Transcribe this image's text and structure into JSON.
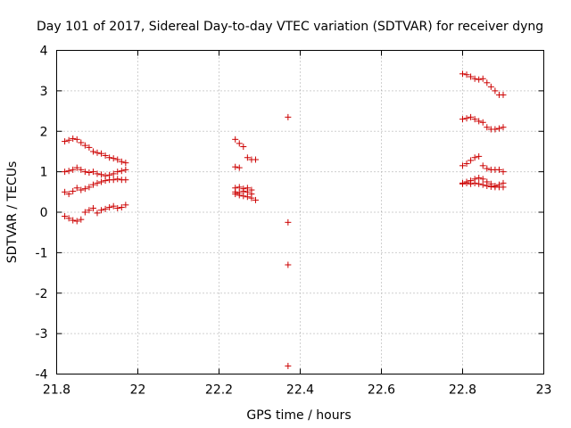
{
  "chart_data": {
    "type": "scatter",
    "title": "Day 101 of 2017, Sidereal Day-to-day VTEC variation (SDTVAR) for receiver dyng",
    "xlabel": "GPS time / hours",
    "ylabel": "SDTVAR / TECUs",
    "xlim": [
      21.8,
      23
    ],
    "ylim": [
      -4,
      4
    ],
    "xticks": [
      "21.8",
      "22",
      "22.2",
      "22.4",
      "22.6",
      "22.8",
      "23"
    ],
    "yticks": [
      "-4",
      "-3",
      "-2",
      "-1",
      "0",
      "1",
      "2",
      "3",
      "4"
    ],
    "grid": true,
    "marker": "+",
    "color": "#cc0000",
    "points": [
      [
        21.82,
        1.75
      ],
      [
        21.83,
        1.78
      ],
      [
        21.84,
        1.82
      ],
      [
        21.85,
        1.8
      ],
      [
        21.86,
        1.72
      ],
      [
        21.87,
        1.65
      ],
      [
        21.88,
        1.6
      ],
      [
        21.89,
        1.5
      ],
      [
        21.9,
        1.47
      ],
      [
        21.91,
        1.45
      ],
      [
        21.92,
        1.4
      ],
      [
        21.93,
        1.35
      ],
      [
        21.94,
        1.33
      ],
      [
        21.95,
        1.3
      ],
      [
        21.96,
        1.25
      ],
      [
        21.97,
        1.22
      ],
      [
        21.82,
        1.0
      ],
      [
        21.83,
        1.02
      ],
      [
        21.84,
        1.05
      ],
      [
        21.85,
        1.1
      ],
      [
        21.86,
        1.05
      ],
      [
        21.87,
        1.0
      ],
      [
        21.88,
        0.98
      ],
      [
        21.89,
        1.0
      ],
      [
        21.9,
        0.95
      ],
      [
        21.91,
        0.93
      ],
      [
        21.92,
        0.9
      ],
      [
        21.93,
        0.92
      ],
      [
        21.94,
        0.95
      ],
      [
        21.95,
        1.0
      ],
      [
        21.96,
        1.02
      ],
      [
        21.97,
        1.05
      ],
      [
        21.82,
        0.5
      ],
      [
        21.83,
        0.45
      ],
      [
        21.84,
        0.52
      ],
      [
        21.85,
        0.6
      ],
      [
        21.86,
        0.55
      ],
      [
        21.87,
        0.58
      ],
      [
        21.88,
        0.62
      ],
      [
        21.89,
        0.68
      ],
      [
        21.9,
        0.72
      ],
      [
        21.91,
        0.75
      ],
      [
        21.92,
        0.78
      ],
      [
        21.93,
        0.8
      ],
      [
        21.94,
        0.8
      ],
      [
        21.95,
        0.82
      ],
      [
        21.96,
        0.8
      ],
      [
        21.97,
        0.8
      ],
      [
        21.82,
        -0.1
      ],
      [
        21.83,
        -0.15
      ],
      [
        21.84,
        -0.2
      ],
      [
        21.85,
        -0.22
      ],
      [
        21.86,
        -0.18
      ],
      [
        21.87,
        0.0
      ],
      [
        21.88,
        0.05
      ],
      [
        21.89,
        0.1
      ],
      [
        21.9,
        -0.02
      ],
      [
        21.91,
        0.05
      ],
      [
        21.92,
        0.08
      ],
      [
        21.93,
        0.12
      ],
      [
        21.94,
        0.15
      ],
      [
        21.95,
        0.1
      ],
      [
        21.96,
        0.12
      ],
      [
        21.97,
        0.18
      ],
      [
        22.24,
        1.8
      ],
      [
        22.25,
        1.7
      ],
      [
        22.26,
        1.62
      ],
      [
        22.27,
        1.35
      ],
      [
        22.28,
        1.3
      ],
      [
        22.29,
        1.3
      ],
      [
        22.24,
        1.12
      ],
      [
        22.25,
        1.1
      ],
      [
        22.24,
        0.6
      ],
      [
        22.25,
        0.62
      ],
      [
        22.26,
        0.58
      ],
      [
        22.27,
        0.6
      ],
      [
        22.28,
        0.55
      ],
      [
        22.24,
        0.5
      ],
      [
        22.25,
        0.48
      ],
      [
        22.26,
        0.52
      ],
      [
        22.27,
        0.5
      ],
      [
        22.28,
        0.45
      ],
      [
        22.24,
        0.45
      ],
      [
        22.25,
        0.42
      ],
      [
        22.26,
        0.4
      ],
      [
        22.27,
        0.38
      ],
      [
        22.28,
        0.35
      ],
      [
        22.29,
        0.3
      ],
      [
        22.37,
        2.35
      ],
      [
        22.37,
        -0.25
      ],
      [
        22.37,
        -1.3
      ],
      [
        22.37,
        -3.8
      ],
      [
        22.8,
        3.42
      ],
      [
        22.81,
        3.4
      ],
      [
        22.82,
        3.35
      ],
      [
        22.83,
        3.3
      ],
      [
        22.84,
        3.28
      ],
      [
        22.85,
        3.3
      ],
      [
        22.86,
        3.2
      ],
      [
        22.87,
        3.1
      ],
      [
        22.88,
        3.0
      ],
      [
        22.89,
        2.9
      ],
      [
        22.9,
        2.9
      ],
      [
        22.8,
        2.3
      ],
      [
        22.81,
        2.32
      ],
      [
        22.82,
        2.35
      ],
      [
        22.83,
        2.3
      ],
      [
        22.84,
        2.25
      ],
      [
        22.85,
        2.22
      ],
      [
        22.86,
        2.1
      ],
      [
        22.87,
        2.05
      ],
      [
        22.88,
        2.05
      ],
      [
        22.89,
        2.07
      ],
      [
        22.9,
        2.1
      ],
      [
        22.8,
        1.15
      ],
      [
        22.81,
        1.2
      ],
      [
        22.82,
        1.28
      ],
      [
        22.83,
        1.35
      ],
      [
        22.84,
        1.38
      ],
      [
        22.85,
        1.15
      ],
      [
        22.86,
        1.08
      ],
      [
        22.87,
        1.05
      ],
      [
        22.88,
        1.05
      ],
      [
        22.89,
        1.05
      ],
      [
        22.9,
        1.0
      ],
      [
        22.8,
        0.72
      ],
      [
        22.81,
        0.75
      ],
      [
        22.82,
        0.78
      ],
      [
        22.83,
        0.82
      ],
      [
        22.84,
        0.85
      ],
      [
        22.85,
        0.82
      ],
      [
        22.86,
        0.75
      ],
      [
        22.87,
        0.7
      ],
      [
        22.88,
        0.65
      ],
      [
        22.89,
        0.68
      ],
      [
        22.9,
        0.72
      ],
      [
        22.8,
        0.7
      ],
      [
        22.81,
        0.72
      ],
      [
        22.82,
        0.7
      ],
      [
        22.83,
        0.72
      ],
      [
        22.84,
        0.7
      ],
      [
        22.85,
        0.68
      ],
      [
        22.86,
        0.65
      ],
      [
        22.87,
        0.63
      ],
      [
        22.88,
        0.62
      ],
      [
        22.89,
        0.62
      ],
      [
        22.9,
        0.62
      ]
    ]
  }
}
